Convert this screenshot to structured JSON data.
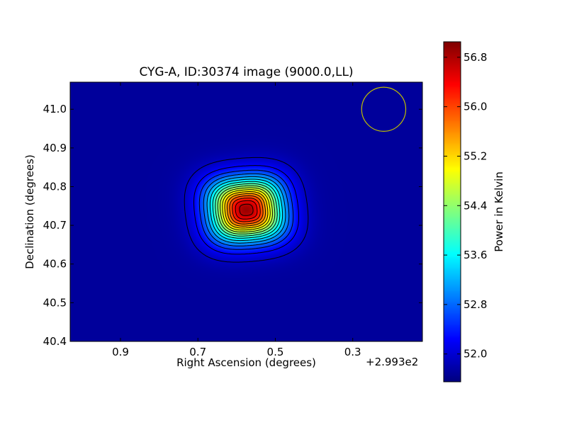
{
  "chart_data": {
    "type": "heatmap",
    "title": "CYG-A, ID:30374 image (9000.0,LL)",
    "xlabel": "Right Ascension (degrees)",
    "ylabel": "Declination (degrees)",
    "x_offset_label": "+2.993e2",
    "x_offset": 299.3,
    "xlim": [
      1.03,
      0.12
    ],
    "ylim": [
      40.4,
      41.07
    ],
    "x_ticks": [
      0.9,
      0.7,
      0.5,
      0.3
    ],
    "x_tick_labels": [
      "0.9",
      "0.7",
      "0.5",
      "0.3"
    ],
    "y_ticks": [
      40.4,
      40.5,
      40.6,
      40.7,
      40.8,
      40.9,
      41.0
    ],
    "y_tick_labels": [
      "40.4",
      "40.5",
      "40.6",
      "40.7",
      "40.8",
      "40.9",
      "41.0"
    ],
    "colormap": "jet",
    "colorbar": {
      "label": "Power in Kelvin",
      "range": [
        51.55,
        57.05
      ],
      "ticks": [
        52.0,
        52.8,
        53.6,
        54.4,
        55.2,
        56.0,
        56.8
      ],
      "tick_labels": [
        "52.0",
        "52.8",
        "53.6",
        "54.4",
        "55.2",
        "56.0",
        "56.8"
      ]
    },
    "source_peak": {
      "ra": 0.575,
      "dec": 40.74,
      "value": 56.9
    },
    "background_level": 51.7,
    "contour_levels": [
      51.9,
      52.2,
      52.5,
      52.8,
      53.1,
      53.4,
      53.7,
      54.0,
      54.3,
      54.6,
      54.9,
      55.2,
      55.5,
      55.8,
      56.1,
      56.4,
      56.7
    ],
    "contour_color": "#000000",
    "beam_marker": {
      "ra": 0.22,
      "dec": 41.0,
      "radius_deg": 0.057,
      "color": "#bfbf00"
    },
    "grid": false,
    "colorbar_placement": "right"
  }
}
